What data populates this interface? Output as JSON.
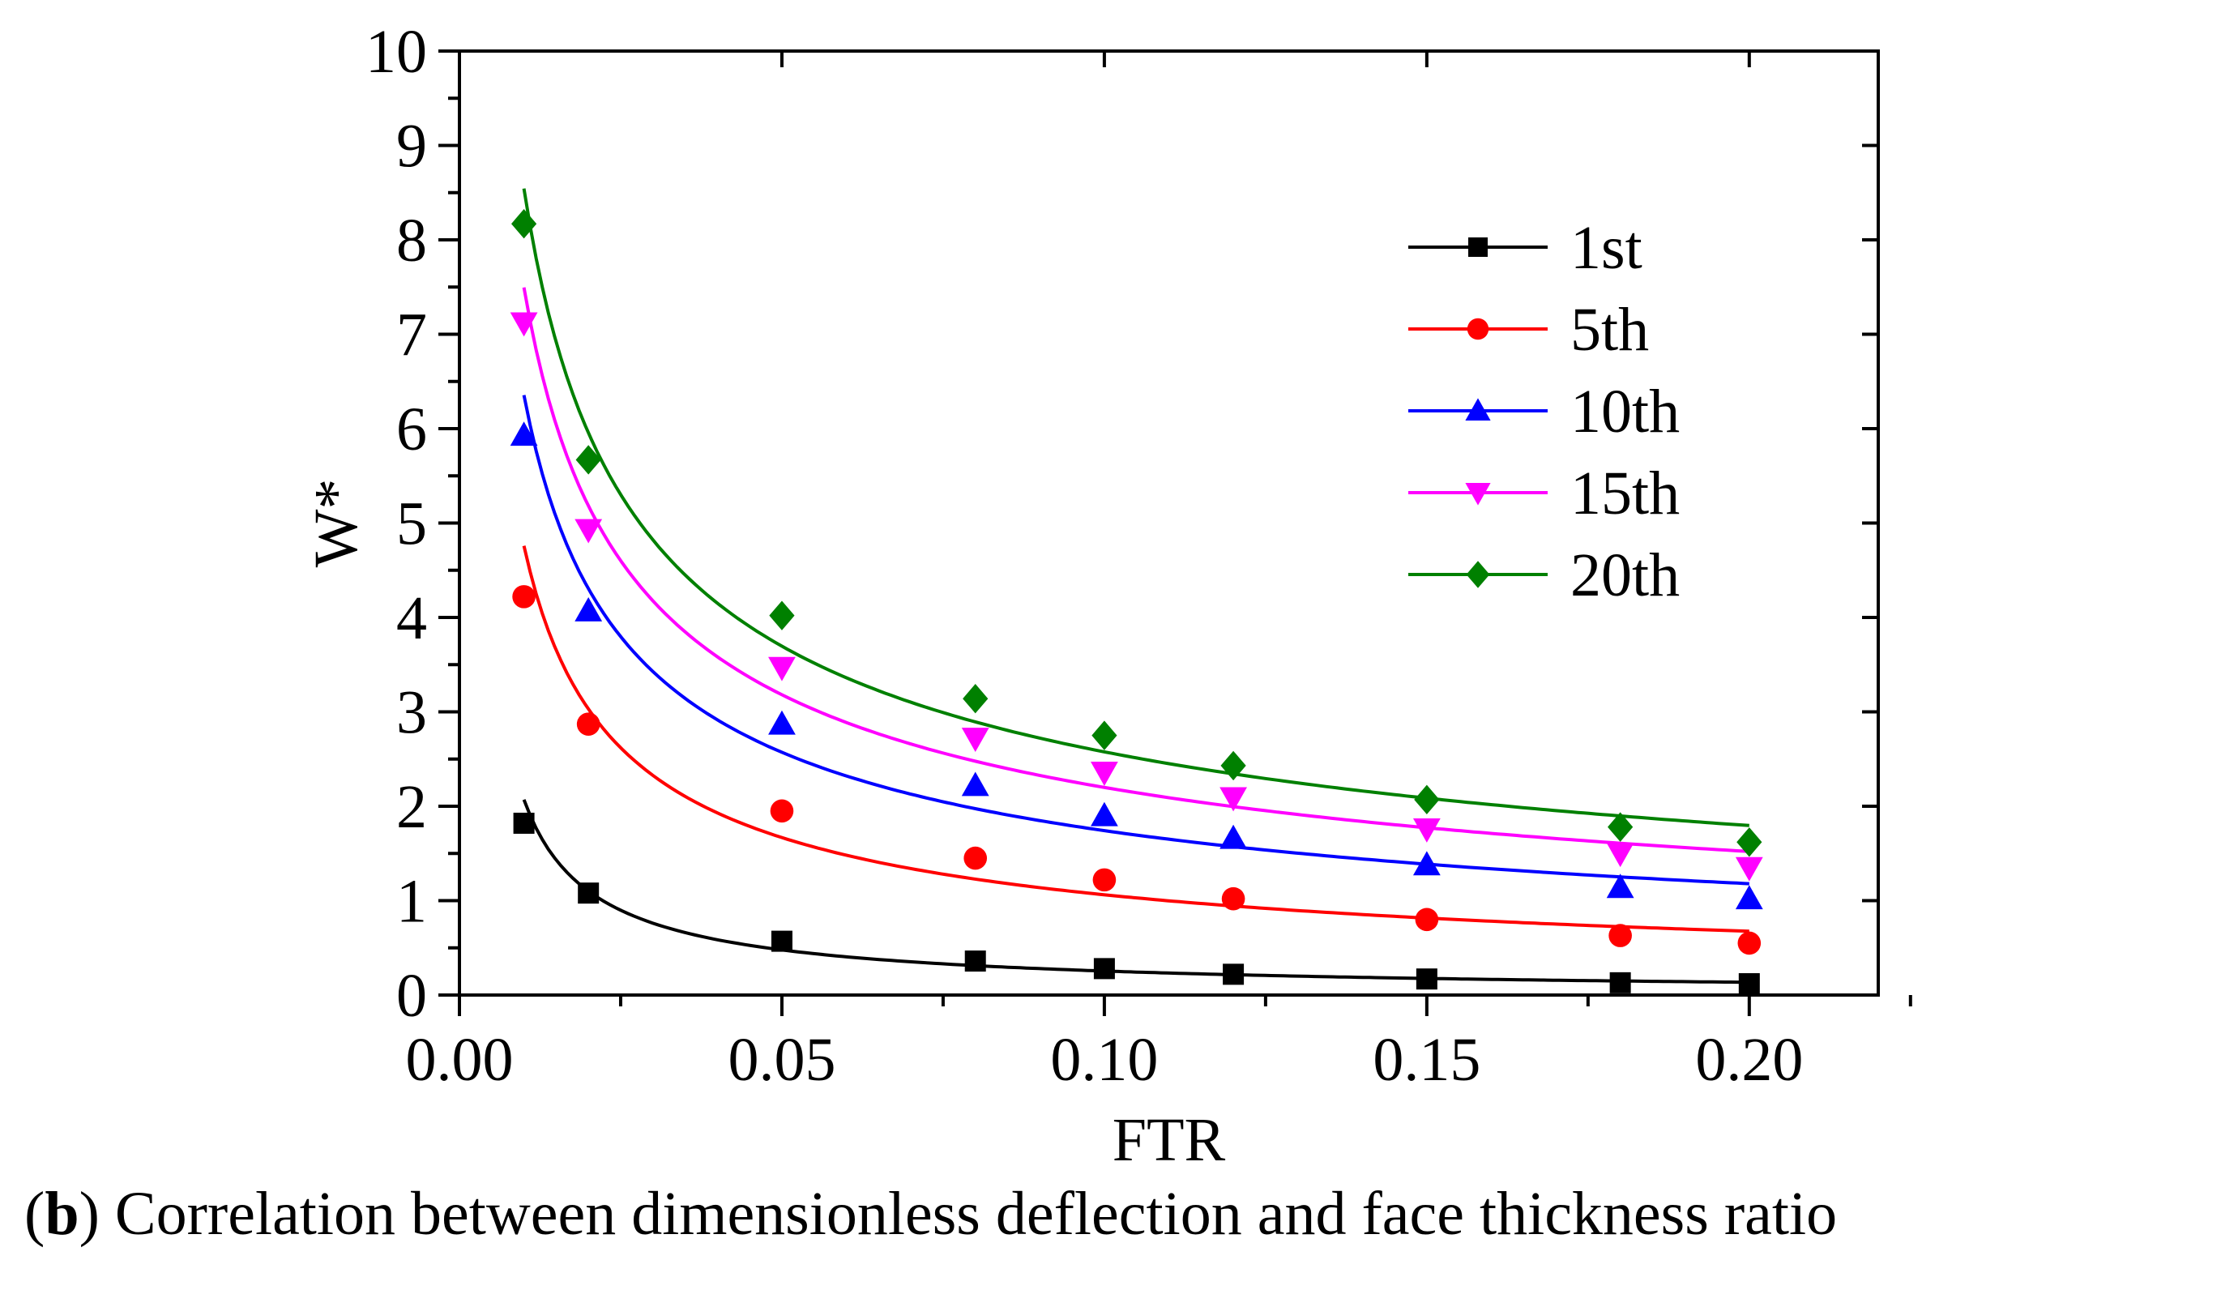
{
  "caption": {
    "open_paren": "(",
    "letter": "b",
    "close_paren": ")",
    "text": " Correlation between dimensionless deflection and face thickness ratio"
  },
  "chart_data": {
    "type": "scatter",
    "xlabel": "FTR",
    "ylabel": "W*",
    "xlim": [
      0,
      0.22
    ],
    "ylim": [
      0,
      10
    ],
    "xticks": [
      "0.00",
      "0.05",
      "0.10",
      "0.15",
      "0.20"
    ],
    "yticks": [
      "0",
      "1",
      "2",
      "3",
      "4",
      "5",
      "6",
      "7",
      "8",
      "9",
      "10"
    ],
    "grid": false,
    "legend_position": "top-right",
    "fit_curves": true,
    "x": [
      0.01,
      0.02,
      0.05,
      0.08,
      0.1,
      0.12,
      0.15,
      0.18,
      0.2
    ],
    "series": [
      {
        "name": "1st",
        "color": "#000000",
        "marker": "square",
        "values": [
          1.82,
          1.08,
          0.57,
          0.36,
          0.28,
          0.22,
          0.17,
          0.13,
          0.12
        ]
      },
      {
        "name": "5th",
        "color": "#ff0000",
        "marker": "circle",
        "values": [
          4.22,
          2.87,
          1.95,
          1.45,
          1.22,
          1.02,
          0.8,
          0.63,
          0.55
        ]
      },
      {
        "name": "10th",
        "color": "#0000ff",
        "marker": "triangle-up",
        "values": [
          5.93,
          4.07,
          2.87,
          2.22,
          1.9,
          1.66,
          1.38,
          1.14,
          1.02
        ]
      },
      {
        "name": "15th",
        "color": "#ff00ff",
        "marker": "triangle-down",
        "values": [
          7.12,
          4.93,
          3.47,
          2.72,
          2.36,
          2.09,
          1.76,
          1.5,
          1.35
        ]
      },
      {
        "name": "20th",
        "color": "#008000",
        "marker": "diamond",
        "values": [
          8.17,
          5.67,
          4.02,
          3.14,
          2.75,
          2.43,
          2.07,
          1.78,
          1.62
        ]
      }
    ]
  }
}
